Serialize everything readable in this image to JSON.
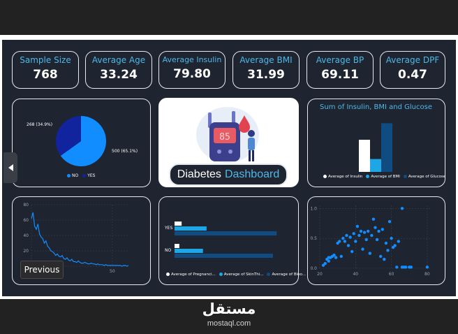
{
  "kpis": [
    {
      "label": "Sample Size",
      "value": "768"
    },
    {
      "label": "Average Age",
      "value": "33.24"
    },
    {
      "label": "Average Insulin",
      "value": "79.80"
    },
    {
      "label": "Average BMI",
      "value": "31.99"
    },
    {
      "label": "Average BP",
      "value": "69.11"
    },
    {
      "label": "Average DPF",
      "value": "0.47"
    }
  ],
  "banner": {
    "word1": "Diabetes",
    "word2": "Dashboard",
    "meter_reading": "85"
  },
  "nav": {
    "previous_tooltip": "Previous"
  },
  "brand": {
    "name_ar": "مستقل",
    "url": "mostaql.com"
  },
  "colors": {
    "no": "#118dff",
    "yes": "#12239e",
    "navy": "#0f4c81",
    "accent": "#4fb8e8",
    "panel_bg": "#1e2430"
  },
  "chart_data": [
    {
      "type": "pie",
      "title": "",
      "slices": [
        {
          "name": "NO",
          "value": 500,
          "label": "500 (65.1%)"
        },
        {
          "name": "YES",
          "value": 268,
          "label": "268 (34.9%)"
        }
      ],
      "legend": [
        "NO",
        "YES"
      ],
      "legend_position": "bottom"
    },
    {
      "type": "bar",
      "title": "Sum of Insulin, BMI and Glucose",
      "series": [
        {
          "name": "Average of Insulin",
          "values": [
            79.8
          ]
        },
        {
          "name": "Average of BMI",
          "values": [
            32.0
          ]
        },
        {
          "name": "Average of Glucose",
          "values": [
            120.9
          ]
        }
      ],
      "legend_position": "bottom"
    },
    {
      "type": "line",
      "x_ticks": [
        "0",
        "50"
      ],
      "y_ticks": [
        "0",
        "20",
        "40",
        "60",
        "80"
      ],
      "ylim": [
        0,
        80
      ],
      "xlim": [
        0,
        60
      ],
      "points": [
        [
          0,
          62
        ],
        [
          1,
          70
        ],
        [
          2,
          52
        ],
        [
          3,
          48
        ],
        [
          4,
          55
        ],
        [
          5,
          42
        ],
        [
          6,
          38
        ],
        [
          7,
          36
        ],
        [
          8,
          30
        ],
        [
          9,
          33
        ],
        [
          10,
          26
        ],
        [
          11,
          24
        ],
        [
          12,
          20
        ],
        [
          13,
          19
        ],
        [
          14,
          17
        ],
        [
          15,
          14
        ],
        [
          16,
          16
        ],
        [
          17,
          13
        ],
        [
          18,
          12
        ],
        [
          19,
          14
        ],
        [
          20,
          10
        ],
        [
          21,
          9
        ],
        [
          22,
          11
        ],
        [
          23,
          8
        ],
        [
          24,
          7
        ],
        [
          25,
          9
        ],
        [
          26,
          6
        ],
        [
          27,
          6
        ],
        [
          28,
          5
        ],
        [
          29,
          7
        ],
        [
          30,
          5
        ],
        [
          31,
          4
        ],
        [
          32,
          4
        ],
        [
          33,
          5
        ],
        [
          34,
          4
        ],
        [
          35,
          3
        ],
        [
          36,
          3
        ],
        [
          37,
          4
        ],
        [
          38,
          3
        ],
        [
          39,
          3
        ],
        [
          40,
          2
        ],
        [
          41,
          3
        ],
        [
          42,
          2
        ],
        [
          43,
          2
        ],
        [
          44,
          2
        ],
        [
          45,
          1
        ],
        [
          46,
          2
        ],
        [
          47,
          1
        ],
        [
          48,
          1
        ],
        [
          49,
          1
        ],
        [
          50,
          1
        ],
        [
          51,
          1
        ],
        [
          52,
          1
        ],
        [
          53,
          1
        ],
        [
          54,
          1
        ],
        [
          55,
          1
        ],
        [
          56,
          0
        ],
        [
          57,
          1
        ],
        [
          58,
          1
        ],
        [
          59,
          0
        ],
        [
          60,
          1
        ]
      ]
    },
    {
      "type": "bar",
      "orientation": "horizontal",
      "categories": [
        "YES",
        "NO"
      ],
      "series": [
        {
          "name": "Average of Pregnanci...",
          "values": [
            4.9,
            3.3
          ]
        },
        {
          "name": "Average of SkinThi...",
          "values": [
            22.2,
            19.7
          ]
        },
        {
          "name": "Average of Bloo...",
          "values": [
            70.8,
            68.2
          ]
        }
      ],
      "legend_position": "bottom"
    },
    {
      "type": "scatter",
      "x_ticks": [
        "20",
        "40",
        "60",
        "80"
      ],
      "y_ticks": [
        "0.0",
        "0.5",
        "1.0"
      ],
      "xlim": [
        20,
        82
      ],
      "ylim": [
        0,
        1.05
      ],
      "points": [
        [
          22,
          0.05
        ],
        [
          23,
          0.08
        ],
        [
          24,
          0.15
        ],
        [
          25,
          0.12
        ],
        [
          25,
          0.18
        ],
        [
          26,
          0.18
        ],
        [
          27,
          0.2
        ],
        [
          28,
          0.22
        ],
        [
          29,
          0.18
        ],
        [
          30,
          0.42
        ],
        [
          31,
          0.45
        ],
        [
          32,
          0.2
        ],
        [
          33,
          0.5
        ],
        [
          34,
          0.45
        ],
        [
          35,
          0.55
        ],
        [
          36,
          0.38
        ],
        [
          37,
          0.52
        ],
        [
          38,
          0.28
        ],
        [
          39,
          0.58
        ],
        [
          40,
          0.45
        ],
        [
          41,
          0.7
        ],
        [
          42,
          0.55
        ],
        [
          43,
          0.62
        ],
        [
          44,
          0.32
        ],
        [
          45,
          0.6
        ],
        [
          46,
          0.48
        ],
        [
          47,
          0.62
        ],
        [
          48,
          0.25
        ],
        [
          49,
          0.55
        ],
        [
          50,
          0.82
        ],
        [
          51,
          0.68
        ],
        [
          52,
          0.48
        ],
        [
          53,
          0.62
        ],
        [
          54,
          0.2
        ],
        [
          55,
          0.65
        ],
        [
          56,
          0.15
        ],
        [
          57,
          0.42
        ],
        [
          58,
          0.3
        ],
        [
          59,
          0.78
        ],
        [
          60,
          0.5
        ],
        [
          61,
          0.35
        ],
        [
          62,
          0.38
        ],
        [
          63,
          0.02
        ],
        [
          64,
          0.45
        ],
        [
          66,
          0.02
        ],
        [
          67,
          0.02
        ],
        [
          68,
          0.02
        ],
        [
          70,
          0.02
        ],
        [
          71,
          0.02
        ],
        [
          80,
          0.02
        ],
        [
          66,
          1.0
        ]
      ]
    }
  ]
}
